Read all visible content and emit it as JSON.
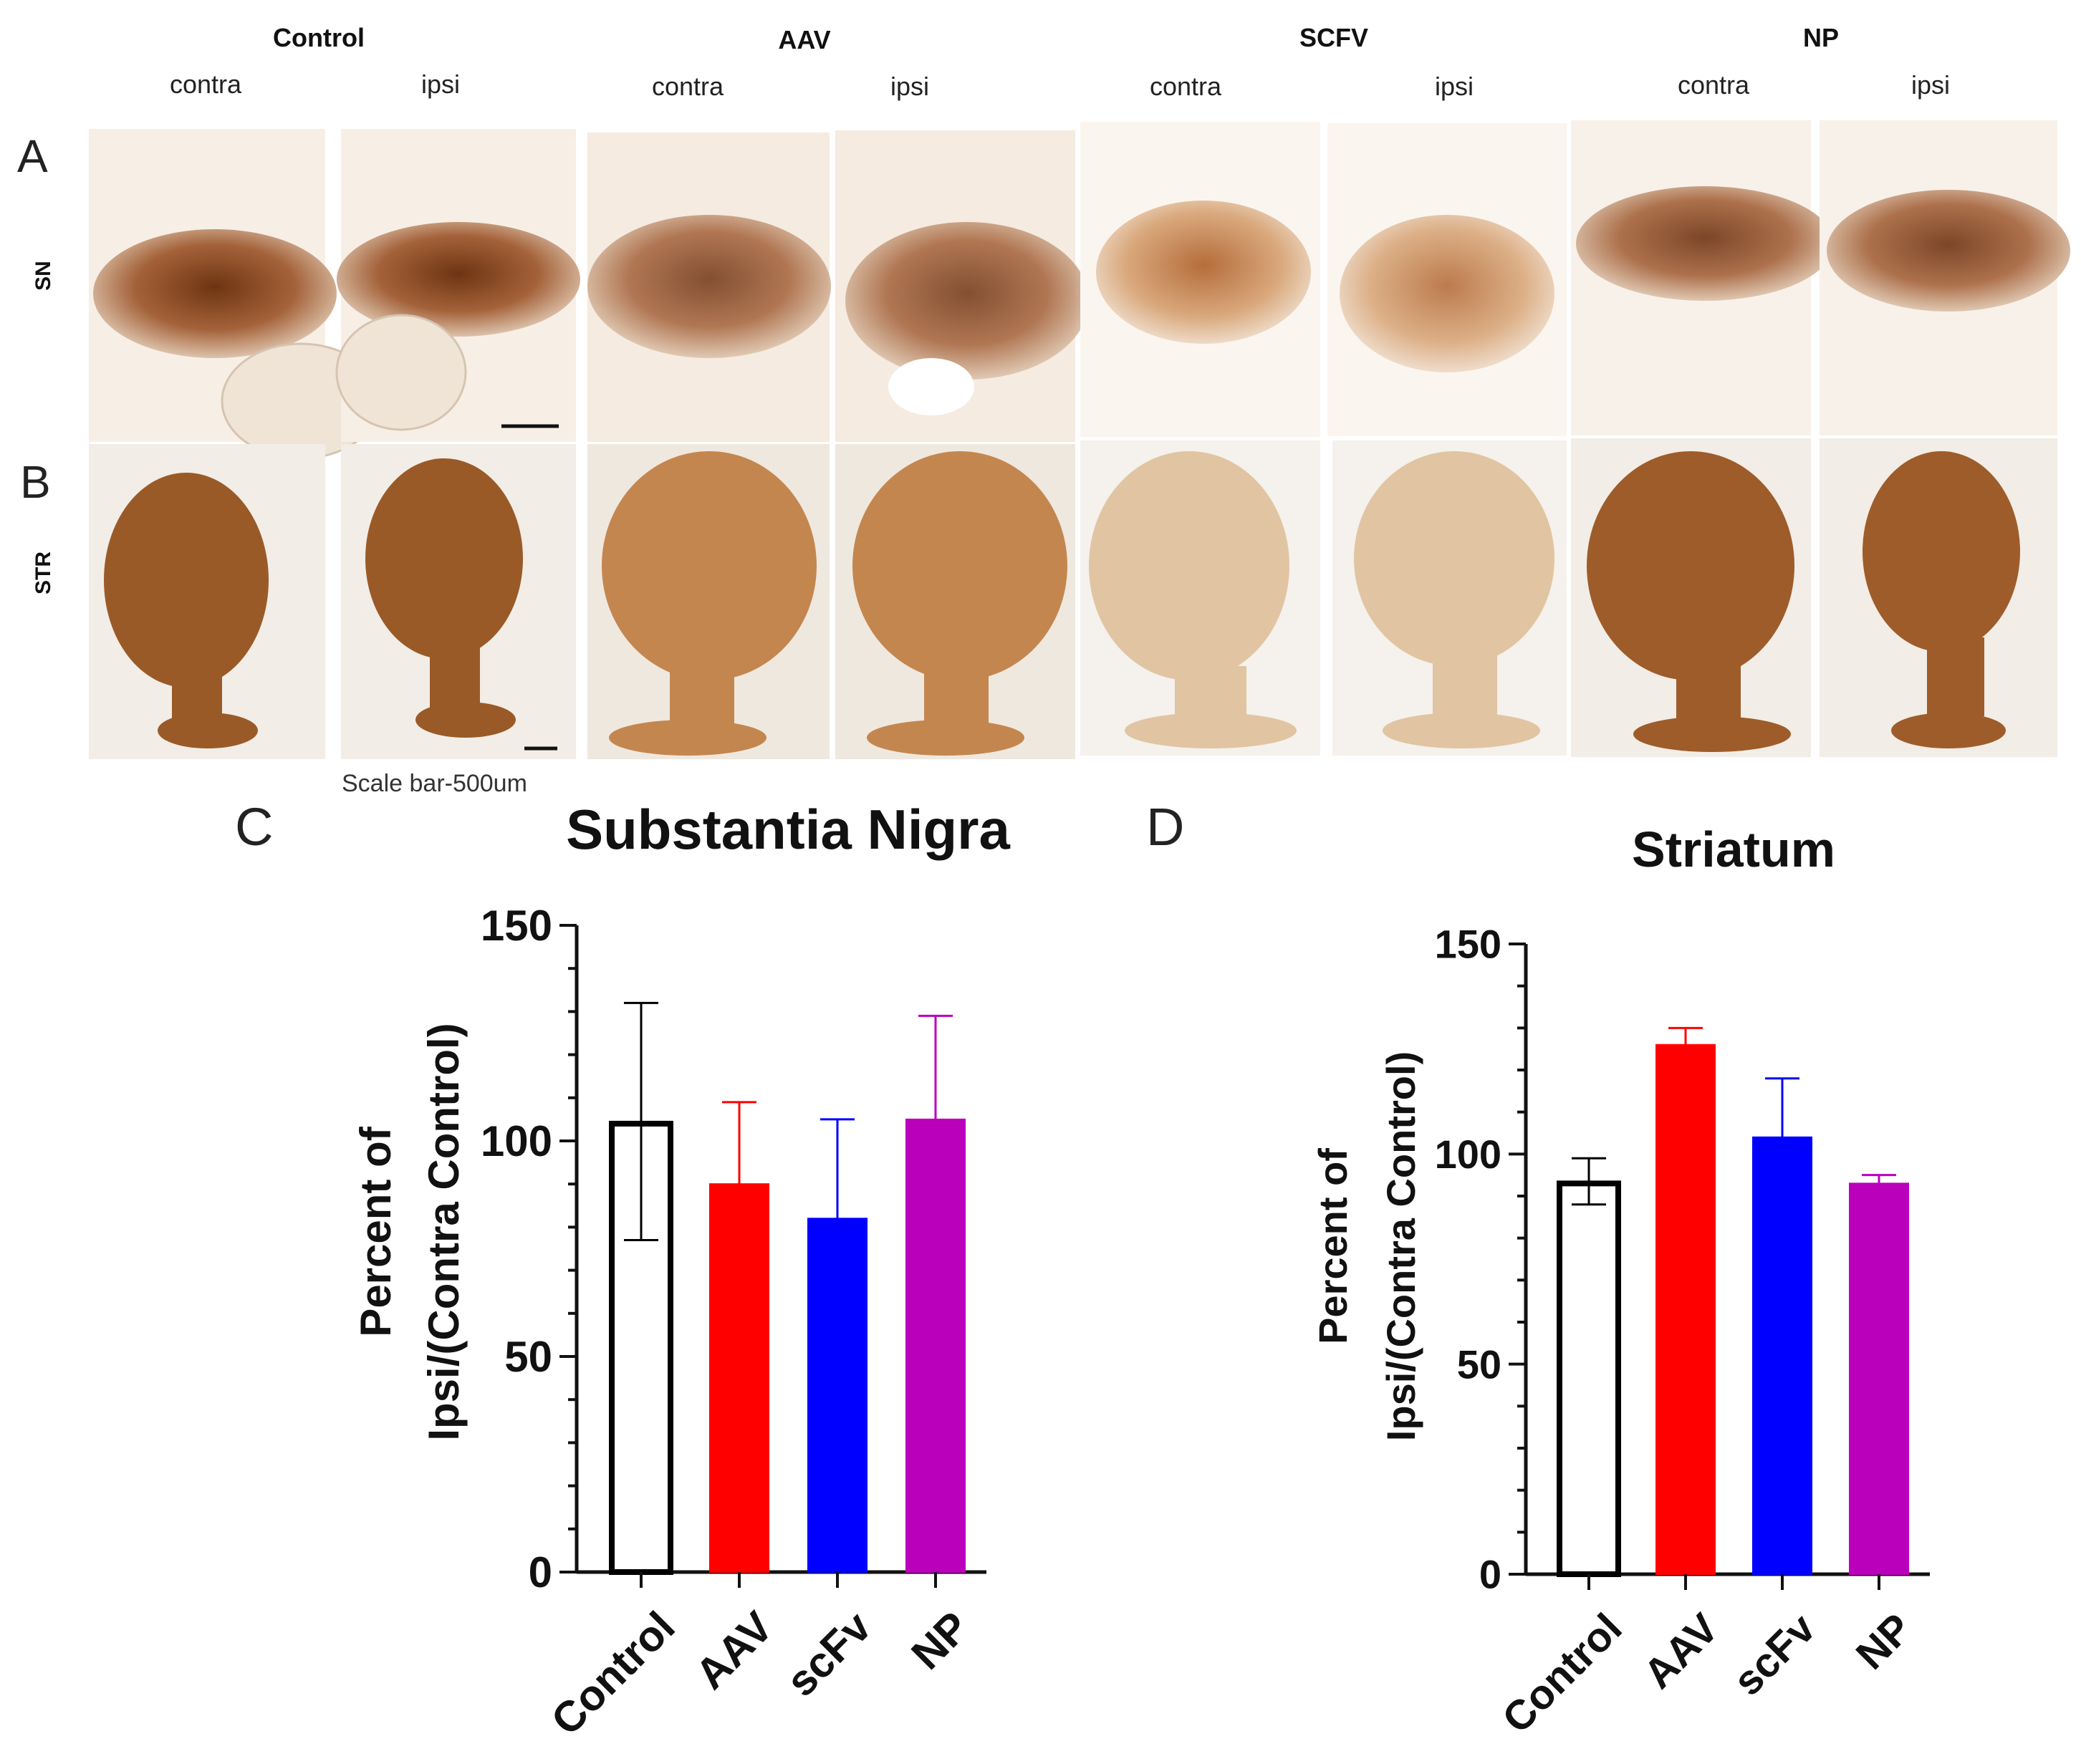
{
  "panels": {
    "a_letter": "A",
    "b_letter": "B",
    "c_letter": "C",
    "d_letter": "D"
  },
  "groups": [
    {
      "title": "Control",
      "contra": "contra",
      "ipsi": "ipsi"
    },
    {
      "title": "AAV",
      "contra": "contra",
      "ipsi": "ipsi"
    },
    {
      "title": "SCFV",
      "contra": "contra",
      "ipsi": "ipsi"
    },
    {
      "title": "NP",
      "contra": "contra",
      "ipsi": "ipsi"
    }
  ],
  "rows": {
    "sn": "SN",
    "str": "STR"
  },
  "scale_bar": "Scale bar-500um",
  "colors": {
    "control": "#000000",
    "aav": "#ff0000",
    "scfv": "#0000ff",
    "np": "#bb00bb",
    "stain": "#8a4a1c"
  },
  "chart_data": [
    {
      "type": "bar",
      "panel": "C",
      "title": "Substantia Nigra",
      "ylabel_line1": "Percent of",
      "ylabel_line2": "Ipsi/(Contra Control)",
      "categories": [
        "Control",
        "AAV",
        "scFv",
        "NP"
      ],
      "values": [
        104,
        90,
        82,
        105
      ],
      "error_high": [
        132,
        109,
        105,
        129
      ],
      "error_low": [
        77,
        null,
        null,
        null
      ],
      "fill_colors": [
        "none",
        "#ff0000",
        "#0000ff",
        "#bb00bb"
      ],
      "edge_colors": [
        "#000000",
        "#ff0000",
        "#0000ff",
        "#bb00bb"
      ],
      "ylim": [
        0,
        150
      ],
      "yticks": [
        0,
        50,
        100,
        150
      ],
      "ytick_labels": [
        "0",
        "50",
        "100",
        "150"
      ]
    },
    {
      "type": "bar",
      "panel": "D",
      "title": "Striatum",
      "ylabel_line1": "Percent of",
      "ylabel_line2": "Ipsi/(Contra Control)",
      "categories": [
        "Control",
        "AAV",
        "scFv",
        "NP"
      ],
      "values": [
        93,
        126,
        104,
        93
      ],
      "error_high": [
        99,
        130,
        118,
        95
      ],
      "error_low": [
        88,
        null,
        null,
        null
      ],
      "fill_colors": [
        "none",
        "#ff0000",
        "#0000ff",
        "#bb00bb"
      ],
      "edge_colors": [
        "#000000",
        "#ff0000",
        "#0000ff",
        "#bb00bb"
      ],
      "ylim": [
        0,
        150
      ],
      "yticks": [
        0,
        50,
        100,
        150
      ],
      "ytick_labels": [
        "0",
        "50",
        "100",
        "150"
      ]
    }
  ]
}
